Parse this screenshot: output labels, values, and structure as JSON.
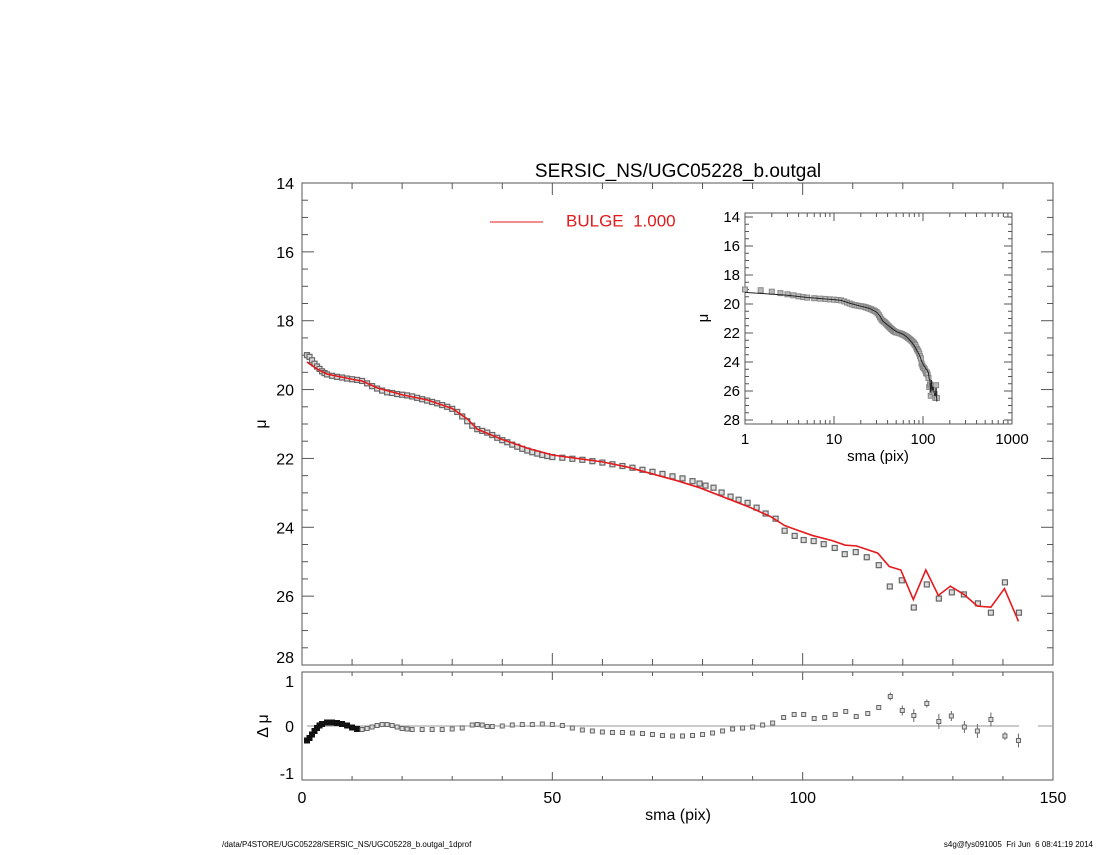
{
  "chart_data": [
    {
      "type": "scatter",
      "title": "SERSIC_NS/UGC05228_b.outgal",
      "xlabel": "",
      "ylabel": "μ",
      "xlim": [
        0,
        150
      ],
      "ylim": [
        28,
        14
      ],
      "y_inverted": true,
      "y_ticks": [
        "14",
        "16",
        "18",
        "20",
        "22",
        "24",
        "26",
        "28"
      ],
      "legend": {
        "placement": "top-center",
        "entries": [
          {
            "name": "BULGE  1.000",
            "color": "#e41a1c"
          }
        ]
      },
      "series": [
        {
          "role": "data",
          "marker": "square",
          "color": "#777777",
          "points": [
            [
              1,
              19.0
            ],
            [
              1.5,
              19.05
            ],
            [
              2,
              19.15
            ],
            [
              2.5,
              19.25
            ],
            [
              3,
              19.33
            ],
            [
              3.5,
              19.4
            ],
            [
              4,
              19.47
            ],
            [
              4.5,
              19.52
            ],
            [
              5,
              19.56
            ],
            [
              6,
              19.6
            ],
            [
              7,
              19.63
            ],
            [
              8,
              19.65
            ],
            [
              9,
              19.68
            ],
            [
              10,
              19.7
            ],
            [
              11,
              19.72
            ],
            [
              12,
              19.75
            ],
            [
              13,
              19.82
            ],
            [
              14,
              19.9
            ],
            [
              15,
              19.97
            ],
            [
              16,
              20.03
            ],
            [
              17,
              20.08
            ],
            [
              18,
              20.1
            ],
            [
              19,
              20.13
            ],
            [
              20,
              20.15
            ],
            [
              21,
              20.17
            ],
            [
              22,
              20.2
            ],
            [
              23,
              20.24
            ],
            [
              24,
              20.28
            ],
            [
              25,
              20.32
            ],
            [
              26,
              20.36
            ],
            [
              27,
              20.4
            ],
            [
              28,
              20.45
            ],
            [
              29,
              20.5
            ],
            [
              30,
              20.56
            ],
            [
              31,
              20.65
            ],
            [
              32,
              20.78
            ],
            [
              33,
              20.92
            ],
            [
              34,
              21.05
            ],
            [
              35,
              21.15
            ],
            [
              36,
              21.2
            ],
            [
              37,
              21.25
            ],
            [
              38,
              21.32
            ],
            [
              39,
              21.4
            ],
            [
              40,
              21.47
            ],
            [
              41,
              21.53
            ],
            [
              42,
              21.6
            ],
            [
              43,
              21.66
            ],
            [
              44,
              21.72
            ],
            [
              45,
              21.77
            ],
            [
              46,
              21.82
            ],
            [
              47,
              21.86
            ],
            [
              48,
              21.9
            ],
            [
              49,
              21.93
            ],
            [
              50,
              21.96
            ],
            [
              52,
              21.98
            ],
            [
              54,
              22.01
            ],
            [
              56,
              22.04
            ],
            [
              58,
              22.08
            ],
            [
              60,
              22.12
            ],
            [
              62,
              22.17
            ],
            [
              64,
              22.22
            ],
            [
              66,
              22.27
            ],
            [
              68,
              22.33
            ],
            [
              70,
              22.39
            ],
            [
              72,
              22.45
            ],
            [
              74,
              22.52
            ],
            [
              76,
              22.58
            ],
            [
              78,
              22.66
            ],
            [
              79.4,
              22.73
            ],
            [
              80.6,
              22.79
            ],
            [
              82.2,
              22.85
            ],
            [
              83.8,
              22.99
            ],
            [
              85.6,
              23.11
            ],
            [
              87.2,
              23.2
            ],
            [
              89,
              23.29
            ],
            [
              90.8,
              23.43
            ],
            [
              92.6,
              23.6
            ],
            [
              94.6,
              23.75
            ],
            [
              96.4,
              24.1
            ],
            [
              98.4,
              24.25
            ],
            [
              100.2,
              24.37
            ],
            [
              102.2,
              24.4
            ],
            [
              104.2,
              24.49
            ],
            [
              106.4,
              24.6
            ],
            [
              108.4,
              24.78
            ],
            [
              110.6,
              24.72
            ],
            [
              112.8,
              24.87
            ],
            [
              115.2,
              25.1
            ],
            [
              117.4,
              25.72
            ],
            [
              119.8,
              25.54
            ],
            [
              122.2,
              26.33
            ],
            [
              124.8,
              25.66
            ],
            [
              127.2,
              26.07
            ],
            [
              129.8,
              25.89
            ],
            [
              132.2,
              25.95
            ],
            [
              135,
              26.21
            ],
            [
              137.6,
              26.48
            ],
            [
              140.4,
              25.6
            ],
            [
              143.2,
              26.48
            ]
          ]
        },
        {
          "role": "model",
          "name": "BULGE  1.000",
          "line": true,
          "color": "#e41a1c",
          "points": [
            [
              1,
              19.2
            ],
            [
              3,
              19.4
            ],
            [
              5,
              19.55
            ],
            [
              10,
              19.7
            ],
            [
              12,
              19.75
            ],
            [
              15,
              19.95
            ],
            [
              20,
              20.15
            ],
            [
              25,
              20.3
            ],
            [
              30,
              20.55
            ],
            [
              33,
              20.85
            ],
            [
              35,
              21.15
            ],
            [
              40,
              21.45
            ],
            [
              45,
              21.7
            ],
            [
              50,
              21.9
            ],
            [
              55,
              22.0
            ],
            [
              60,
              22.1
            ],
            [
              65,
              22.25
            ],
            [
              70,
              22.45
            ],
            [
              75,
              22.65
            ],
            [
              79.4,
              22.85
            ],
            [
              89.3,
              23.41
            ],
            [
              93.6,
              23.69
            ],
            [
              96.4,
              23.95
            ],
            [
              98.7,
              24.07
            ],
            [
              102,
              24.24
            ],
            [
              106,
              24.39
            ],
            [
              108.5,
              24.52
            ],
            [
              110.7,
              24.54
            ],
            [
              115,
              24.75
            ],
            [
              117.3,
              25.14
            ],
            [
              119.6,
              25.24
            ],
            [
              122.1,
              26.1
            ],
            [
              124.6,
              25.24
            ],
            [
              127.1,
              25.98
            ],
            [
              129.5,
              25.71
            ],
            [
              132.2,
              25.95
            ],
            [
              134.9,
              26.29
            ],
            [
              137.6,
              26.32
            ],
            [
              140.3,
              25.78
            ],
            [
              143.1,
              26.73
            ]
          ]
        }
      ]
    },
    {
      "type": "scatter",
      "inset": true,
      "xlabel": "sma (pix)",
      "ylabel": "μ",
      "x_scale": "log",
      "xlim": [
        1,
        1000
      ],
      "ylim": [
        28,
        14
      ],
      "y_inverted": true,
      "x_ticks": [
        "1",
        "10",
        "100",
        "1000"
      ],
      "y_ticks": [
        "14",
        "16",
        "18",
        "20",
        "22",
        "24",
        "26",
        "28"
      ],
      "series_source": "same data and model as main panel",
      "colors": {
        "data": "#888888",
        "model": "#222222"
      }
    },
    {
      "type": "scatter",
      "xlabel": "sma (pix)",
      "ylabel": "Δ μ",
      "xlim": [
        0,
        150
      ],
      "ylim": [
        -1.08,
        1.08
      ],
      "x_ticks": [
        "0",
        "50",
        "100",
        "150"
      ],
      "y_ticks": [
        "1",
        "0",
        "-1"
      ],
      "zero_line": true,
      "series": [
        {
          "role": "residual",
          "marker": "square",
          "color": "#777777",
          "points": [
            [
              1,
              -0.29,
              0
            ],
            [
              1.5,
              -0.24,
              0
            ],
            [
              2,
              -0.17,
              0
            ],
            [
              2.5,
              -0.1,
              0
            ],
            [
              3,
              -0.04,
              0
            ],
            [
              3.5,
              0.01,
              0
            ],
            [
              4,
              0.04,
              0
            ],
            [
              5,
              0.07,
              0
            ],
            [
              6,
              0.07,
              0
            ],
            [
              7,
              0.06,
              0
            ],
            [
              8,
              0.04,
              0
            ],
            [
              9,
              0.01,
              0
            ],
            [
              10,
              -0.03,
              0
            ],
            [
              11,
              -0.06,
              0
            ],
            [
              12,
              -0.07,
              0
            ],
            [
              13,
              -0.05,
              0
            ],
            [
              14,
              -0.02,
              0
            ],
            [
              15,
              0.01,
              0
            ],
            [
              16,
              0.03,
              0
            ],
            [
              17,
              0.03,
              0
            ],
            [
              18,
              0.01,
              0
            ],
            [
              19,
              -0.02,
              0
            ],
            [
              20,
              -0.05,
              0
            ],
            [
              21,
              -0.06,
              0
            ],
            [
              22,
              -0.07,
              0
            ],
            [
              24,
              -0.07,
              0
            ],
            [
              26,
              -0.07,
              0
            ],
            [
              28,
              -0.07,
              0
            ],
            [
              30,
              -0.06,
              0
            ],
            [
              32,
              -0.04,
              0
            ],
            [
              34,
              0.02,
              0
            ],
            [
              35,
              0.03,
              0
            ],
            [
              36,
              0.02,
              0
            ],
            [
              37,
              -0.01,
              0
            ],
            [
              38,
              -0.01,
              0
            ],
            [
              40,
              0.0,
              0
            ],
            [
              42,
              0.02,
              0
            ],
            [
              44,
              0.03,
              0
            ],
            [
              46,
              0.03,
              0
            ],
            [
              48,
              0.04,
              0
            ],
            [
              50,
              0.03,
              0
            ],
            [
              52,
              0.01,
              0
            ],
            [
              54,
              -0.04,
              0
            ],
            [
              56,
              -0.08,
              0
            ],
            [
              58,
              -0.1,
              0
            ],
            [
              60,
              -0.12,
              0
            ],
            [
              62,
              -0.13,
              0
            ],
            [
              64,
              -0.13,
              0
            ],
            [
              66,
              -0.14,
              0
            ],
            [
              68,
              -0.15,
              0
            ],
            [
              70,
              -0.17,
              0
            ],
            [
              72,
              -0.19,
              0
            ],
            [
              74,
              -0.2,
              0
            ],
            [
              76,
              -0.2,
              0
            ],
            [
              78,
              -0.19,
              0
            ],
            [
              80,
              -0.17,
              0
            ],
            [
              82,
              -0.14,
              0
            ],
            [
              84,
              -0.1,
              0
            ],
            [
              86,
              -0.06,
              0
            ],
            [
              88,
              -0.04,
              0
            ],
            [
              90,
              -0.02,
              0
            ],
            [
              92,
              0.02,
              0
            ],
            [
              94,
              0.06,
              0
            ],
            [
              96.2,
              0.17,
              0.02
            ],
            [
              98.3,
              0.23,
              0.02
            ],
            [
              100.2,
              0.23,
              0.02
            ],
            [
              102.3,
              0.15,
              0.02
            ],
            [
              104.4,
              0.17,
              0.02
            ],
            [
              106.5,
              0.23,
              0.02
            ],
            [
              108.6,
              0.29,
              0.03
            ],
            [
              110.7,
              0.19,
              0.03
            ],
            [
              113,
              0.25,
              0.03
            ],
            [
              115.2,
              0.37,
              0.04
            ],
            [
              117.5,
              0.59,
              0.08
            ],
            [
              119.9,
              0.31,
              0.1
            ],
            [
              122.2,
              0.21,
              0.13
            ],
            [
              124.8,
              0.45,
              0.08
            ],
            [
              127.2,
              0.09,
              0.15
            ],
            [
              129.7,
              0.2,
              0.1
            ],
            [
              132.3,
              -0.02,
              0.12
            ],
            [
              134.9,
              -0.1,
              0.14
            ],
            [
              137.6,
              0.13,
              0.14
            ],
            [
              140.4,
              -0.2,
              0.08
            ],
            [
              143.1,
              -0.29,
              0.14
            ]
          ]
        }
      ]
    }
  ],
  "footer": {
    "left": "/data/P4STORE/UGC05228/SERSIC_NS/UGC05228_b.outgal_1dprof",
    "right": "s4g@fys091005  Fri Jun  6 08:41:19 2014"
  }
}
